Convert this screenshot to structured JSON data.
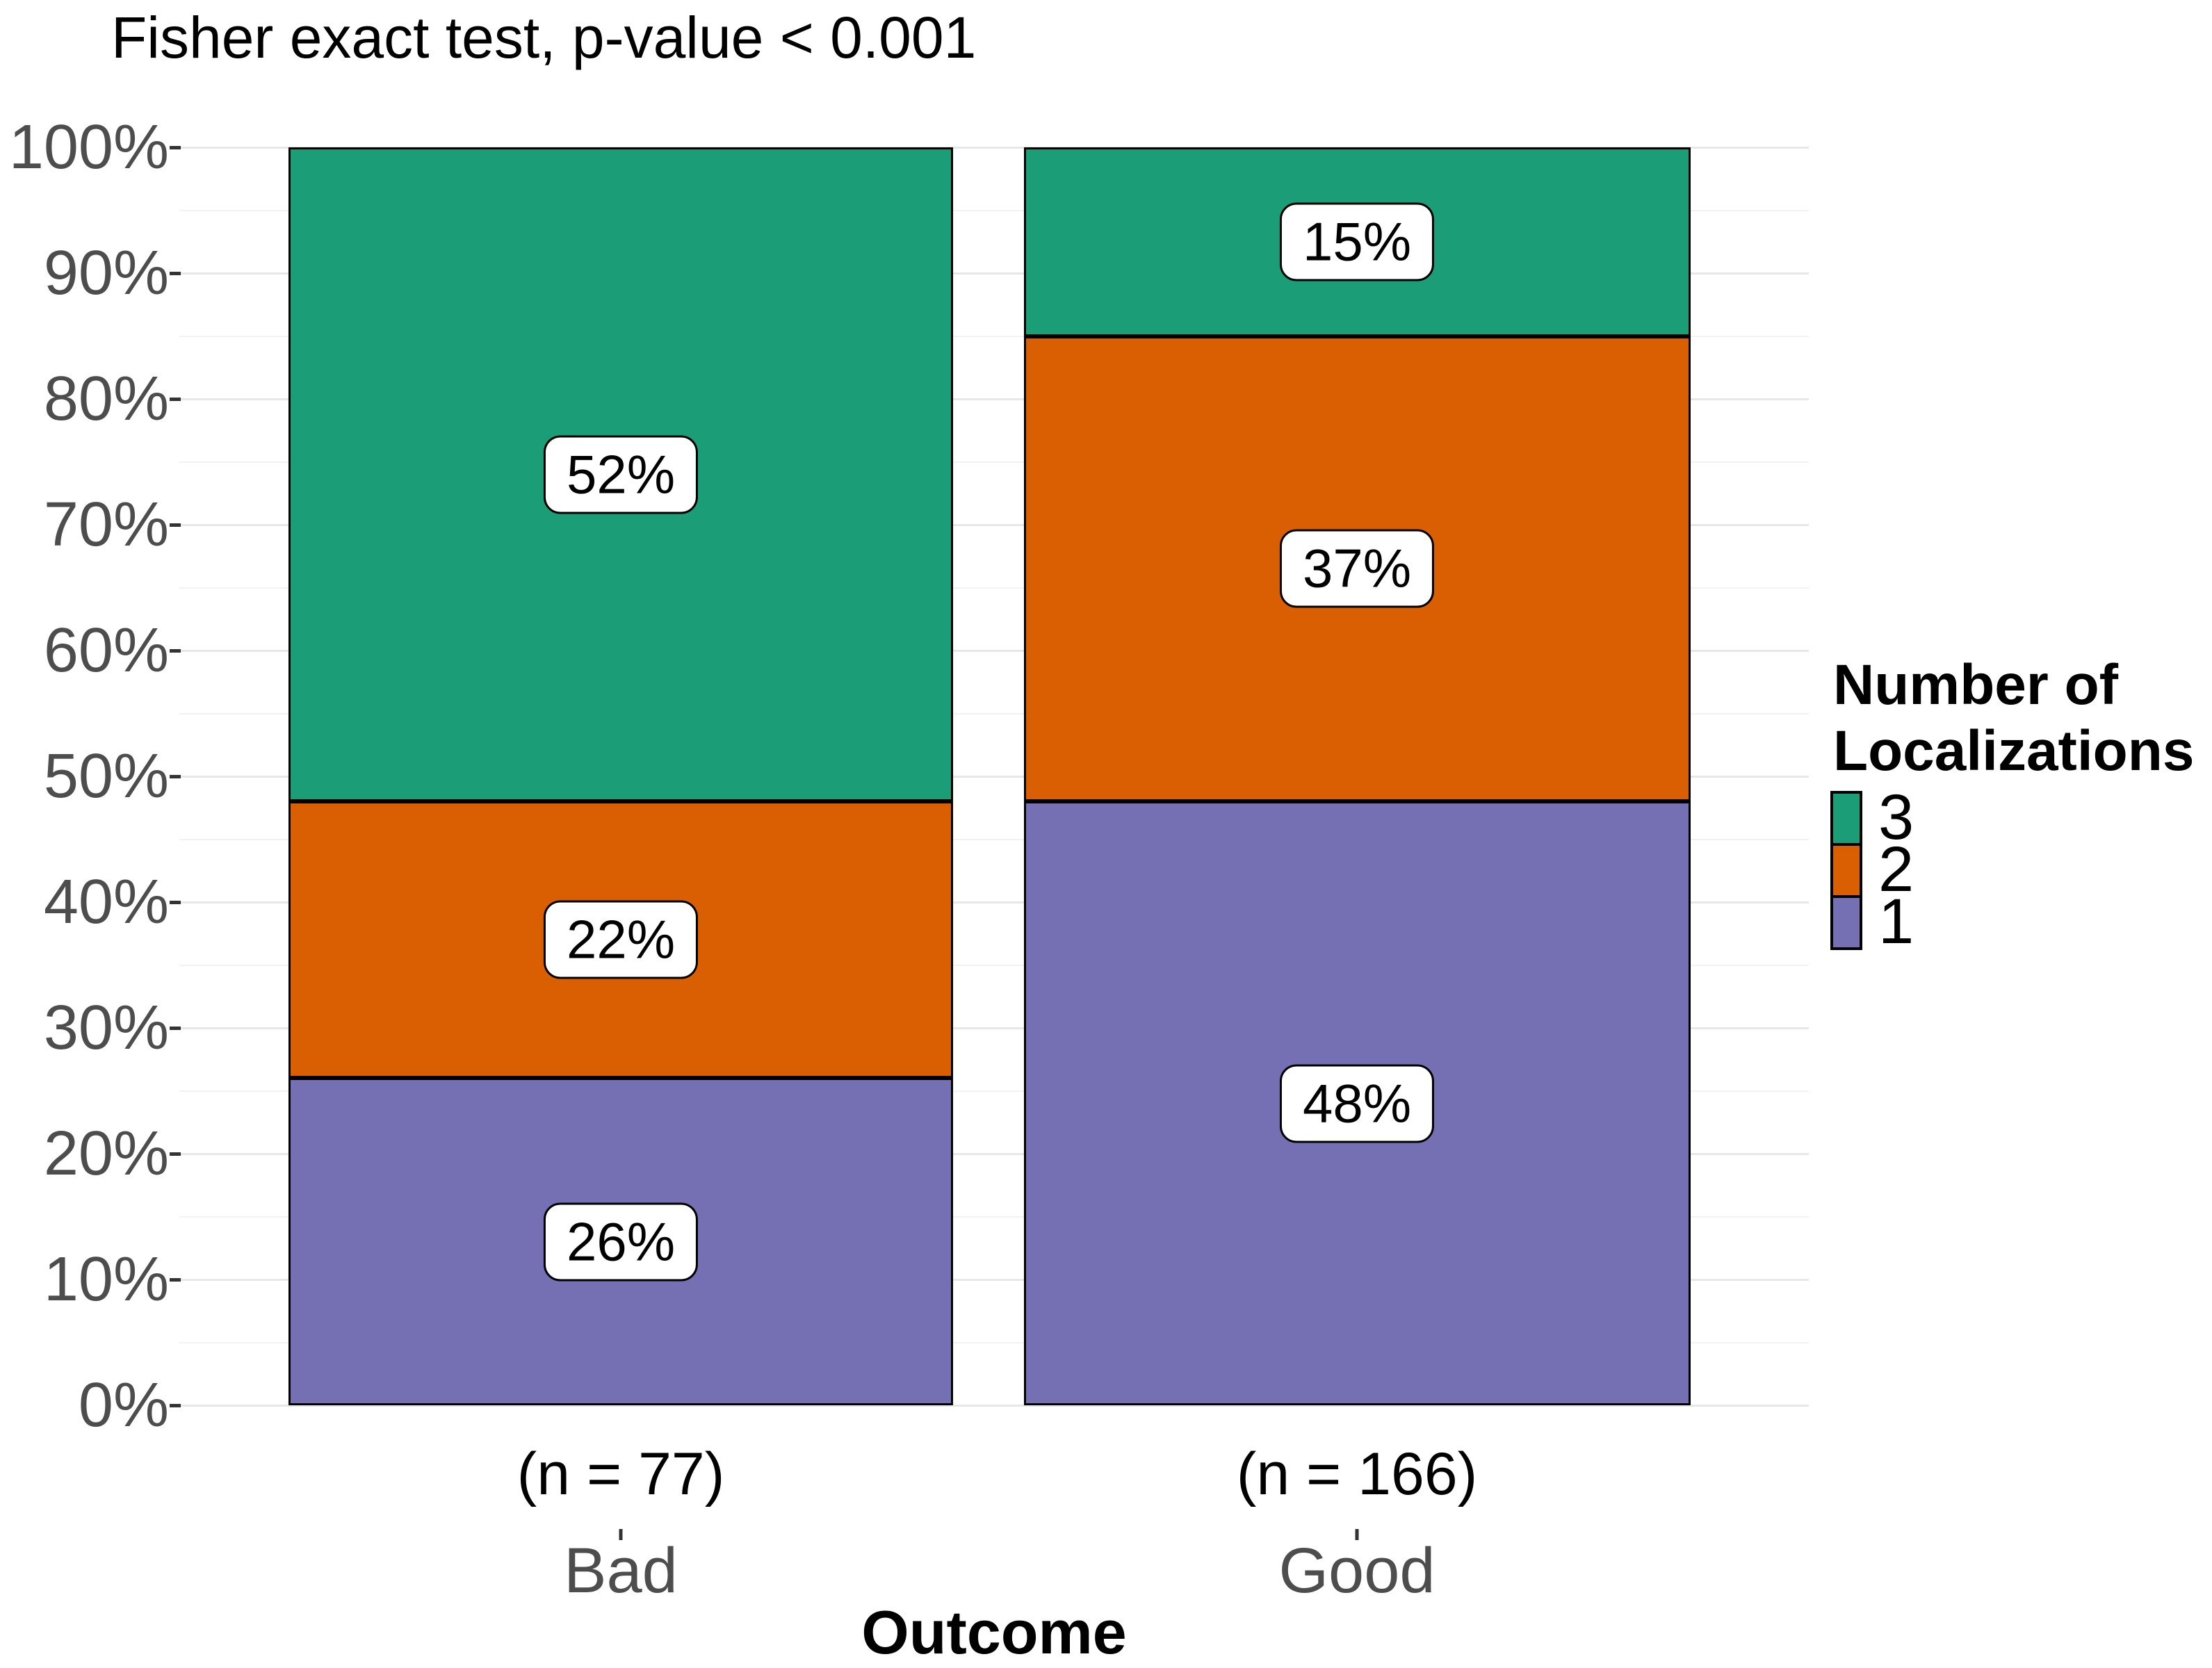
{
  "title": "Fisher exact test, p-value < 0.001",
  "x_axis": {
    "title": "Outcome",
    "categories": [
      "Bad",
      "Good"
    ],
    "n_labels": [
      "(n = 77)",
      "(n = 166)"
    ]
  },
  "y_axis": {
    "tick_labels": [
      "0%",
      "10%",
      "20%",
      "30%",
      "40%",
      "50%",
      "60%",
      "70%",
      "80%",
      "90%",
      "100%"
    ]
  },
  "legend": {
    "title": "Number of Localizations",
    "entries": [
      {
        "label": "3",
        "color": "#1B9E77"
      },
      {
        "label": "2",
        "color": "#D95F02"
      },
      {
        "label": "1",
        "color": "#7570B3"
      }
    ]
  },
  "colors": {
    "green": "#1B9E77",
    "orange": "#D95F02",
    "purple": "#7570B3",
    "axis_text": "#4d4d4d",
    "grid_major": "#e7e7e7",
    "grid_minor": "#f2f2f2"
  },
  "chart_data": {
    "type": "bar",
    "subtype": "stacked_percent",
    "title": "Fisher exact test, p-value < 0.001",
    "xlabel": "Outcome",
    "ylabel": "",
    "ylim": [
      0,
      100
    ],
    "grid": "horizontal major every 10%, minor every 5%",
    "legend_position": "right",
    "categories": [
      "Bad",
      "Good"
    ],
    "category_n": [
      77,
      166
    ],
    "y_tick_labels": [
      "0%",
      "10%",
      "20%",
      "30%",
      "40%",
      "50%",
      "60%",
      "70%",
      "80%",
      "90%",
      "100%"
    ],
    "series": [
      {
        "name": "3",
        "color": "#1B9E77",
        "values": [
          52,
          15
        ],
        "labels": [
          "52%",
          "15%"
        ]
      },
      {
        "name": "2",
        "color": "#D95F02",
        "values": [
          22,
          37
        ],
        "labels": [
          "22%",
          "37%"
        ]
      },
      {
        "name": "1",
        "color": "#7570B3",
        "values": [
          26,
          48
        ],
        "labels": [
          "26%",
          "48%"
        ]
      }
    ]
  }
}
